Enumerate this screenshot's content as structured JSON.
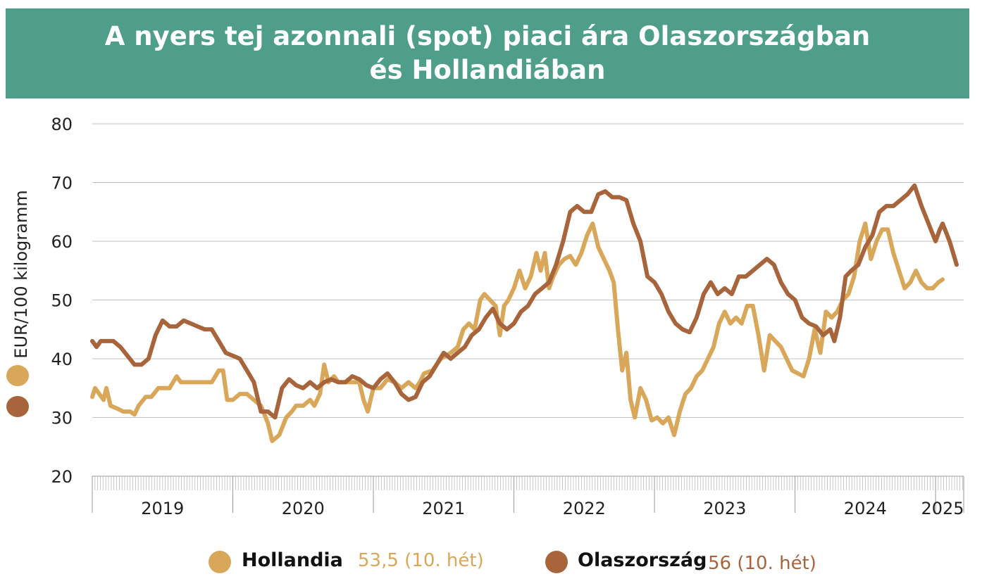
{
  "title": {
    "line1": "A nyers tej azonnali (spot) piaci ára Olaszországban",
    "line2": "és Hollandiában"
  },
  "colors": {
    "header_bg": "#4f9e8a",
    "hollandia": "#d9a75a",
    "olaszorszag": "#a8643a",
    "grid": "#c0c0c0"
  },
  "legend": {
    "hollandia": {
      "name": "Hollandia",
      "value": "53,5 (10. hét)"
    },
    "olaszorszag": {
      "name": "Olaszország",
      "value": "56 (10. hét)"
    }
  },
  "chart_data": {
    "type": "line",
    "title": "A nyers tej azonnali (spot) piaci ára Olaszországban és Hollandiában",
    "ylabel": "EUR/100 kilogramm",
    "xlabel": "",
    "ylim": [
      20,
      80
    ],
    "yticks": [
      20,
      30,
      40,
      50,
      60,
      70,
      80
    ],
    "xlim": [
      2019.0,
      2025.2
    ],
    "years": [
      "2019",
      "2020",
      "2021",
      "2022",
      "2023",
      "2024",
      "2025"
    ],
    "grid": "horizontal",
    "legend_position": "bottom",
    "series": [
      {
        "name": "Hollandia",
        "color": "#d9a75a",
        "points": [
          [
            2019.0,
            33.5
          ],
          [
            2019.02,
            35
          ],
          [
            2019.05,
            34
          ],
          [
            2019.08,
            33
          ],
          [
            2019.1,
            35
          ],
          [
            2019.13,
            32
          ],
          [
            2019.18,
            31.5
          ],
          [
            2019.22,
            31
          ],
          [
            2019.27,
            31
          ],
          [
            2019.3,
            30.5
          ],
          [
            2019.33,
            32
          ],
          [
            2019.38,
            33.5
          ],
          [
            2019.42,
            33.5
          ],
          [
            2019.47,
            35
          ],
          [
            2019.55,
            35
          ],
          [
            2019.6,
            37
          ],
          [
            2019.63,
            36
          ],
          [
            2019.85,
            36
          ],
          [
            2019.9,
            38
          ],
          [
            2019.93,
            38
          ],
          [
            2019.96,
            33
          ],
          [
            2020.0,
            33
          ],
          [
            2020.05,
            34
          ],
          [
            2020.1,
            34
          ],
          [
            2020.15,
            33
          ],
          [
            2020.2,
            32
          ],
          [
            2020.25,
            29
          ],
          [
            2020.28,
            26
          ],
          [
            2020.33,
            27
          ],
          [
            2020.38,
            30
          ],
          [
            2020.42,
            31
          ],
          [
            2020.45,
            32
          ],
          [
            2020.5,
            32
          ],
          [
            2020.55,
            33
          ],
          [
            2020.58,
            32
          ],
          [
            2020.62,
            34
          ],
          [
            2020.65,
            39
          ],
          [
            2020.68,
            36
          ],
          [
            2020.72,
            37
          ],
          [
            2020.75,
            36
          ],
          [
            2020.8,
            36
          ],
          [
            2020.85,
            36
          ],
          [
            2020.9,
            36
          ],
          [
            2020.93,
            33
          ],
          [
            2020.96,
            31
          ],
          [
            2021.0,
            35
          ],
          [
            2021.05,
            35
          ],
          [
            2021.1,
            36.5
          ],
          [
            2021.15,
            36
          ],
          [
            2021.2,
            35
          ],
          [
            2021.25,
            36
          ],
          [
            2021.3,
            35
          ],
          [
            2021.33,
            36
          ],
          [
            2021.36,
            37.5
          ],
          [
            2021.42,
            38
          ],
          [
            2021.48,
            40
          ],
          [
            2021.55,
            41
          ],
          [
            2021.6,
            42
          ],
          [
            2021.64,
            45
          ],
          [
            2021.68,
            46
          ],
          [
            2021.72,
            45
          ],
          [
            2021.76,
            50
          ],
          [
            2021.79,
            51
          ],
          [
            2021.83,
            50
          ],
          [
            2021.87,
            49
          ],
          [
            2021.9,
            44
          ],
          [
            2021.93,
            49
          ],
          [
            2021.96,
            50
          ],
          [
            2022.0,
            52
          ],
          [
            2022.04,
            55
          ],
          [
            2022.08,
            52
          ],
          [
            2022.12,
            54
          ],
          [
            2022.16,
            58
          ],
          [
            2022.19,
            55
          ],
          [
            2022.22,
            58
          ],
          [
            2022.25,
            52
          ],
          [
            2022.28,
            54
          ],
          [
            2022.32,
            56
          ],
          [
            2022.36,
            57
          ],
          [
            2022.4,
            57.5
          ],
          [
            2022.44,
            56
          ],
          [
            2022.48,
            58
          ],
          [
            2022.52,
            61
          ],
          [
            2022.56,
            63
          ],
          [
            2022.6,
            59
          ],
          [
            2022.64,
            57
          ],
          [
            2022.68,
            55
          ],
          [
            2022.71,
            53
          ],
          [
            2022.74,
            45
          ],
          [
            2022.77,
            38
          ],
          [
            2022.8,
            41
          ],
          [
            2022.83,
            33
          ],
          [
            2022.86,
            30
          ],
          [
            2022.9,
            35
          ],
          [
            2022.94,
            33
          ],
          [
            2022.98,
            29.5
          ],
          [
            2023.02,
            30
          ],
          [
            2023.06,
            29
          ],
          [
            2023.1,
            30
          ],
          [
            2023.14,
            27
          ],
          [
            2023.18,
            31
          ],
          [
            2023.22,
            34
          ],
          [
            2023.26,
            35
          ],
          [
            2023.3,
            37
          ],
          [
            2023.34,
            38
          ],
          [
            2023.38,
            40
          ],
          [
            2023.42,
            42
          ],
          [
            2023.46,
            46
          ],
          [
            2023.5,
            48
          ],
          [
            2023.54,
            46
          ],
          [
            2023.58,
            47
          ],
          [
            2023.62,
            46
          ],
          [
            2023.66,
            49
          ],
          [
            2023.7,
            49
          ],
          [
            2023.74,
            44
          ],
          [
            2023.78,
            38
          ],
          [
            2023.82,
            44
          ],
          [
            2023.86,
            43
          ],
          [
            2023.9,
            42
          ],
          [
            2023.94,
            40
          ],
          [
            2023.98,
            38
          ],
          [
            2024.02,
            37.5
          ],
          [
            2024.06,
            37
          ],
          [
            2024.1,
            40
          ],
          [
            2024.14,
            45
          ],
          [
            2024.18,
            41
          ],
          [
            2024.22,
            48
          ],
          [
            2024.26,
            47
          ],
          [
            2024.3,
            48
          ],
          [
            2024.34,
            50
          ],
          [
            2024.38,
            51
          ],
          [
            2024.42,
            54
          ],
          [
            2024.46,
            60
          ],
          [
            2024.5,
            63
          ],
          [
            2024.54,
            57
          ],
          [
            2024.58,
            60
          ],
          [
            2024.62,
            62
          ],
          [
            2024.66,
            62
          ],
          [
            2024.7,
            58
          ],
          [
            2024.74,
            55
          ],
          [
            2024.78,
            52
          ],
          [
            2024.82,
            53
          ],
          [
            2024.86,
            55
          ],
          [
            2024.9,
            53
          ],
          [
            2024.94,
            52
          ],
          [
            2024.98,
            52
          ],
          [
            2025.02,
            53
          ],
          [
            2025.05,
            53.5
          ]
        ]
      },
      {
        "name": "Olaszország",
        "color": "#a8643a",
        "points": [
          [
            2019.0,
            43
          ],
          [
            2019.03,
            42
          ],
          [
            2019.06,
            43
          ],
          [
            2019.1,
            43
          ],
          [
            2019.15,
            43
          ],
          [
            2019.2,
            42
          ],
          [
            2019.25,
            40.5
          ],
          [
            2019.3,
            39
          ],
          [
            2019.35,
            39
          ],
          [
            2019.4,
            40
          ],
          [
            2019.45,
            44
          ],
          [
            2019.5,
            46.5
          ],
          [
            2019.55,
            45.5
          ],
          [
            2019.6,
            45.5
          ],
          [
            2019.65,
            46.5
          ],
          [
            2019.7,
            46
          ],
          [
            2019.75,
            45.5
          ],
          [
            2019.8,
            45
          ],
          [
            2019.85,
            45
          ],
          [
            2019.9,
            43
          ],
          [
            2019.95,
            41
          ],
          [
            2020.0,
            40.5
          ],
          [
            2020.05,
            40
          ],
          [
            2020.1,
            38
          ],
          [
            2020.15,
            36
          ],
          [
            2020.2,
            31
          ],
          [
            2020.25,
            31
          ],
          [
            2020.3,
            30
          ],
          [
            2020.35,
            35
          ],
          [
            2020.4,
            36.5
          ],
          [
            2020.45,
            35.5
          ],
          [
            2020.5,
            35
          ],
          [
            2020.55,
            36
          ],
          [
            2020.6,
            35
          ],
          [
            2020.65,
            36
          ],
          [
            2020.7,
            36.5
          ],
          [
            2020.75,
            36
          ],
          [
            2020.8,
            36
          ],
          [
            2020.85,
            37
          ],
          [
            2020.9,
            36.5
          ],
          [
            2020.95,
            35.5
          ],
          [
            2021.0,
            35
          ],
          [
            2021.05,
            36.5
          ],
          [
            2021.1,
            37.5
          ],
          [
            2021.15,
            36
          ],
          [
            2021.2,
            34
          ],
          [
            2021.25,
            33
          ],
          [
            2021.3,
            33.5
          ],
          [
            2021.35,
            36
          ],
          [
            2021.4,
            37
          ],
          [
            2021.45,
            39
          ],
          [
            2021.5,
            41
          ],
          [
            2021.55,
            40
          ],
          [
            2021.6,
            41
          ],
          [
            2021.65,
            42
          ],
          [
            2021.7,
            44
          ],
          [
            2021.75,
            45
          ],
          [
            2021.8,
            47
          ],
          [
            2021.85,
            48.5
          ],
          [
            2021.9,
            46
          ],
          [
            2021.95,
            45
          ],
          [
            2022.0,
            46
          ],
          [
            2022.05,
            48
          ],
          [
            2022.1,
            49
          ],
          [
            2022.15,
            51
          ],
          [
            2022.2,
            52
          ],
          [
            2022.25,
            53
          ],
          [
            2022.3,
            56
          ],
          [
            2022.35,
            60
          ],
          [
            2022.4,
            65
          ],
          [
            2022.45,
            66
          ],
          [
            2022.5,
            65
          ],
          [
            2022.55,
            65
          ],
          [
            2022.6,
            68
          ],
          [
            2022.65,
            68.5
          ],
          [
            2022.7,
            67.5
          ],
          [
            2022.75,
            67.5
          ],
          [
            2022.8,
            67
          ],
          [
            2022.85,
            63
          ],
          [
            2022.9,
            60
          ],
          [
            2022.95,
            54
          ],
          [
            2023.0,
            53
          ],
          [
            2023.05,
            51
          ],
          [
            2023.1,
            48
          ],
          [
            2023.15,
            46
          ],
          [
            2023.2,
            45
          ],
          [
            2023.25,
            44.5
          ],
          [
            2023.3,
            47
          ],
          [
            2023.35,
            51
          ],
          [
            2023.4,
            53
          ],
          [
            2023.45,
            51
          ],
          [
            2023.5,
            52
          ],
          [
            2023.55,
            51
          ],
          [
            2023.6,
            54
          ],
          [
            2023.65,
            54
          ],
          [
            2023.7,
            55
          ],
          [
            2023.75,
            56
          ],
          [
            2023.8,
            57
          ],
          [
            2023.85,
            56
          ],
          [
            2023.9,
            53
          ],
          [
            2023.95,
            51
          ],
          [
            2024.0,
            50
          ],
          [
            2024.05,
            47
          ],
          [
            2024.1,
            46
          ],
          [
            2024.15,
            45.5
          ],
          [
            2024.2,
            44
          ],
          [
            2024.25,
            45
          ],
          [
            2024.28,
            43
          ],
          [
            2024.32,
            47
          ],
          [
            2024.36,
            54
          ],
          [
            2024.4,
            55
          ],
          [
            2024.45,
            56
          ],
          [
            2024.5,
            59
          ],
          [
            2024.55,
            61
          ],
          [
            2024.6,
            65
          ],
          [
            2024.65,
            66
          ],
          [
            2024.7,
            66
          ],
          [
            2024.75,
            67
          ],
          [
            2024.8,
            68
          ],
          [
            2024.85,
            69.5
          ],
          [
            2024.9,
            66
          ],
          [
            2024.95,
            63
          ],
          [
            2025.0,
            60
          ],
          [
            2025.03,
            62
          ],
          [
            2025.05,
            63
          ],
          [
            2025.1,
            60
          ],
          [
            2025.15,
            56
          ]
        ]
      }
    ]
  }
}
